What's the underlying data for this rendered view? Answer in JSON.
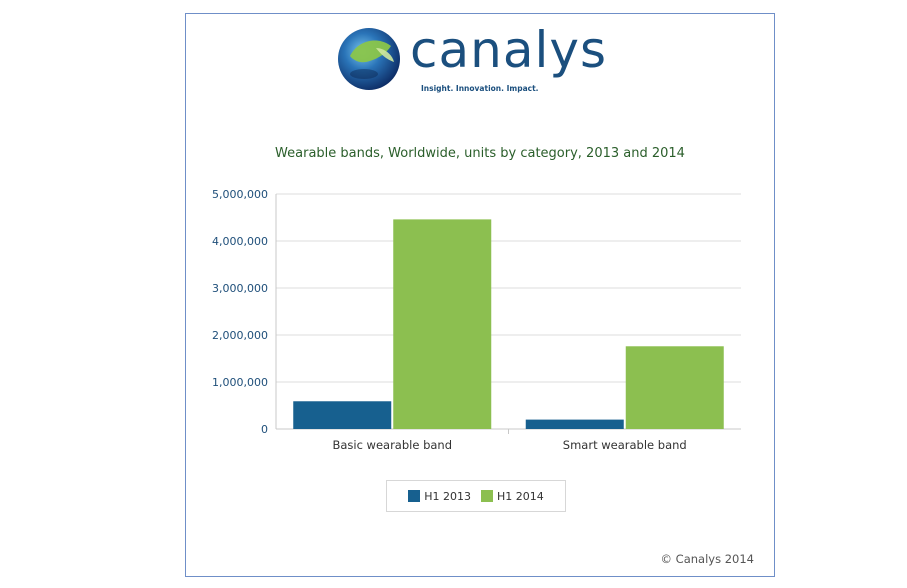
{
  "branding": {
    "logo_text": "canalys",
    "tagline": "Insight. Innovation. Impact."
  },
  "copyright": "© Canalys 2014",
  "colors": {
    "series_2013": "#17608f",
    "series_2014": "#8cbf50",
    "brand": "#1b4f7e",
    "frame_border": "#6f8fc8"
  },
  "chart_data": {
    "type": "bar",
    "title": "Wearable bands, Worldwide, units by category, 2013 and 2014",
    "xlabel": "",
    "ylabel": "",
    "categories": [
      "Basic wearable band",
      "Smart wearable band"
    ],
    "series": [
      {
        "name": "H1 2013",
        "color": "#17608f",
        "values": [
          590000,
          200000
        ]
      },
      {
        "name": "H1 2014",
        "color": "#8cbf50",
        "values": [
          4460000,
          1760000
        ]
      }
    ],
    "ylim": [
      0,
      5000000
    ],
    "yticks": [
      0,
      1000000,
      2000000,
      3000000,
      4000000,
      5000000
    ],
    "ytick_labels": [
      "0",
      "1,000,000",
      "2,000,000",
      "3,000,000",
      "4,000,000",
      "5,000,000"
    ],
    "grid": true,
    "legend_position": "bottom"
  }
}
